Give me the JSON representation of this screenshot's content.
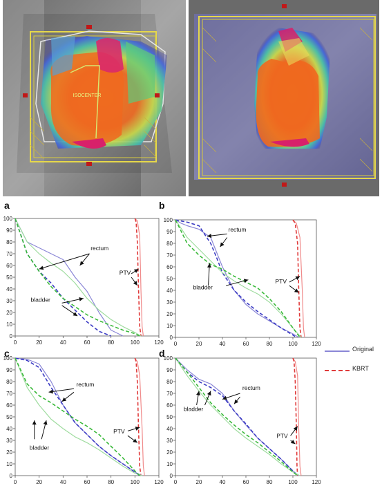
{
  "colors": {
    "original": "#8a86d6",
    "kbrt": "#e03a3a",
    "bladder_orig": "#9fdc9f",
    "bladder_kbrt": "#3cba3c",
    "rectum_kbrt": "#3b3bc4",
    "ptv_orig": "#f08a8a",
    "annotation": "#111111",
    "axis": "#555555"
  },
  "images": {
    "left_ct": {
      "description_icon": "ct-dose-overlay-original"
    },
    "right_ct": {
      "description_icon": "ct-dose-overlay-kbrt"
    }
  },
  "legend": {
    "items": [
      {
        "label": "Original",
        "style": "solid",
        "color": "#8a86d6"
      },
      {
        "label": "KBRT",
        "style": "dashed",
        "color": "#e03a3a"
      }
    ]
  },
  "chart_data": [
    {
      "panel": "a",
      "type": "line",
      "xlim": [
        0,
        120
      ],
      "ylim": [
        0,
        100
      ],
      "xticks": [
        0,
        20,
        40,
        60,
        80,
        100,
        120
      ],
      "yticks": [
        0,
        10,
        20,
        30,
        40,
        50,
        60,
        70,
        80,
        90,
        100
      ],
      "series": [
        {
          "role": "ptv_orig",
          "x": [
            100,
            102,
            104,
            105,
            106,
            107
          ],
          "y": [
            100,
            98,
            85,
            40,
            8,
            0
          ]
        },
        {
          "role": "ptv_kbrt",
          "x": [
            100,
            101,
            102,
            103,
            104,
            105
          ],
          "y": [
            100,
            97,
            80,
            40,
            8,
            0
          ]
        },
        {
          "role": "rectum_orig",
          "x": [
            0,
            5,
            10,
            20,
            30,
            40,
            50,
            60,
            70,
            80,
            90
          ],
          "y": [
            100,
            90,
            80,
            75,
            70,
            65,
            50,
            38,
            20,
            5,
            0
          ]
        },
        {
          "role": "rectum_kbrt",
          "x": [
            0,
            5,
            10,
            20,
            30,
            40,
            50,
            60,
            70,
            80
          ],
          "y": [
            100,
            85,
            70,
            55,
            45,
            32,
            22,
            12,
            4,
            0
          ]
        },
        {
          "role": "bladder_orig",
          "x": [
            0,
            10,
            20,
            30,
            40,
            50,
            60,
            70,
            80,
            90,
            100,
            105
          ],
          "y": [
            100,
            80,
            70,
            62,
            55,
            45,
            32,
            22,
            14,
            8,
            3,
            0
          ]
        },
        {
          "role": "bladder_kbrt",
          "x": [
            0,
            10,
            20,
            30,
            40,
            50,
            60,
            70,
            80,
            90,
            100,
            104
          ],
          "y": [
            100,
            70,
            55,
            42,
            32,
            25,
            18,
            13,
            9,
            5,
            2,
            0
          ]
        }
      ],
      "annotations": [
        {
          "text": "rectum",
          "tx": 63,
          "ty": 73,
          "anchor": "start",
          "arrows": [
            [
              62,
              70,
              54,
              60
            ],
            [
              62,
              70,
              20,
              57
            ]
          ]
        },
        {
          "text": "PTV",
          "tx": 87,
          "ty": 52,
          "anchor": "start",
          "arrows": [
            [
              97,
              53,
              103,
              57
            ],
            [
              97,
              50,
              102,
              43
            ]
          ]
        },
        {
          "text": "bladder",
          "tx": 13,
          "ty": 29,
          "anchor": "start",
          "arrows": [
            [
              39,
              28,
              57,
              32
            ],
            [
              39,
              26,
              52,
              17
            ]
          ]
        }
      ]
    },
    {
      "panel": "b",
      "type": "line",
      "xlim": [
        0,
        120
      ],
      "ylim": [
        0,
        100
      ],
      "xticks": [
        0,
        20,
        40,
        60,
        80,
        100,
        120
      ],
      "yticks": [
        0,
        10,
        20,
        30,
        40,
        50,
        60,
        70,
        80,
        90,
        100
      ],
      "series": [
        {
          "role": "ptv_orig",
          "x": [
            100,
            103,
            106,
            108,
            109,
            110
          ],
          "y": [
            100,
            97,
            85,
            40,
            8,
            0
          ]
        },
        {
          "role": "ptv_kbrt",
          "x": [
            100,
            102,
            104,
            105,
            106,
            107
          ],
          "y": [
            100,
            97,
            80,
            40,
            8,
            0
          ]
        },
        {
          "role": "rectum_orig",
          "x": [
            0,
            5,
            10,
            20,
            30,
            40,
            50,
            60,
            70,
            80,
            90,
            100,
            105
          ],
          "y": [
            100,
            97,
            95,
            92,
            85,
            60,
            40,
            28,
            20,
            14,
            8,
            3,
            0
          ]
        },
        {
          "role": "rectum_kbrt",
          "x": [
            0,
            10,
            20,
            30,
            35,
            40,
            50,
            60,
            70,
            80,
            90,
            100,
            103
          ],
          "y": [
            100,
            98,
            95,
            80,
            68,
            55,
            40,
            30,
            22,
            15,
            8,
            2,
            0
          ]
        },
        {
          "role": "bladder_orig",
          "x": [
            0,
            10,
            20,
            30,
            40,
            50,
            60,
            70,
            80,
            90,
            100,
            107
          ],
          "y": [
            100,
            85,
            75,
            65,
            55,
            48,
            42,
            37,
            30,
            20,
            8,
            0
          ]
        },
        {
          "role": "bladder_kbrt",
          "x": [
            0,
            10,
            20,
            30,
            40,
            50,
            60,
            70,
            80,
            90,
            100,
            106
          ],
          "y": [
            100,
            80,
            70,
            62,
            58,
            52,
            47,
            42,
            33,
            22,
            8,
            0
          ]
        }
      ],
      "annotations": [
        {
          "text": "rectum",
          "tx": 45,
          "ty": 90,
          "anchor": "start",
          "arrows": [
            [
              44,
              88,
              27,
              86
            ],
            [
              44,
              85,
              38,
              77
            ]
          ]
        },
        {
          "text": "PTV",
          "tx": 85,
          "ty": 46,
          "anchor": "start",
          "arrows": [
            [
              97,
              47,
              106,
              52
            ],
            [
              97,
              44,
              105,
              38
            ]
          ]
        },
        {
          "text": "bladder",
          "tx": 15,
          "ty": 41,
          "anchor": "start",
          "arrows": [
            [
              28,
              44,
              29,
              63
            ],
            [
              43,
              44,
              62,
              49
            ]
          ]
        }
      ]
    },
    {
      "panel": "c",
      "type": "line",
      "xlim": [
        0,
        120
      ],
      "ylim": [
        0,
        100
      ],
      "xticks": [
        0,
        20,
        40,
        60,
        80,
        100,
        120
      ],
      "yticks": [
        0,
        10,
        20,
        30,
        40,
        50,
        60,
        70,
        80,
        90,
        100
      ],
      "series": [
        {
          "role": "ptv_orig",
          "x": [
            100,
            102,
            104,
            106,
            107,
            108
          ],
          "y": [
            100,
            97,
            85,
            40,
            8,
            0
          ]
        },
        {
          "role": "ptv_kbrt",
          "x": [
            100,
            101,
            102,
            103,
            104,
            105
          ],
          "y": [
            100,
            97,
            80,
            40,
            8,
            0
          ]
        },
        {
          "role": "rectum_orig",
          "x": [
            0,
            10,
            20,
            30,
            40,
            50,
            60,
            70,
            80,
            90,
            100,
            106
          ],
          "y": [
            100,
            99,
            95,
            80,
            60,
            45,
            35,
            25,
            17,
            10,
            3,
            0
          ]
        },
        {
          "role": "rectum_kbrt",
          "x": [
            0,
            10,
            20,
            30,
            40,
            50,
            60,
            70,
            80,
            90,
            100,
            104
          ],
          "y": [
            100,
            98,
            92,
            75,
            60,
            45,
            35,
            25,
            17,
            10,
            3,
            0
          ]
        },
        {
          "role": "bladder_orig",
          "x": [
            0,
            10,
            20,
            30,
            40,
            50,
            60,
            70,
            80,
            90,
            100,
            106
          ],
          "y": [
            100,
            75,
            60,
            48,
            40,
            33,
            28,
            22,
            15,
            8,
            2,
            0
          ]
        },
        {
          "role": "bladder_kbrt",
          "x": [
            0,
            10,
            20,
            30,
            40,
            50,
            60,
            70,
            80,
            90,
            100,
            104
          ],
          "y": [
            100,
            78,
            68,
            62,
            55,
            48,
            42,
            35,
            25,
            15,
            4,
            0
          ]
        }
      ],
      "annotations": [
        {
          "text": "rectum",
          "tx": 51,
          "ty": 76,
          "anchor": "start",
          "arrows": [
            [
              49,
              74,
              28,
              71
            ],
            [
              49,
              71,
              39,
              63
            ]
          ]
        },
        {
          "text": "PTV",
          "tx": 82,
          "ty": 36,
          "anchor": "start",
          "arrows": [
            [
              94,
              38,
              104,
              41
            ],
            [
              94,
              34,
              102,
              28
            ]
          ]
        },
        {
          "text": "bladder",
          "tx": 12,
          "ty": 22,
          "anchor": "start",
          "arrows": [
            [
              16,
              31,
              16,
              47
            ],
            [
              22,
              31,
              26,
              47
            ]
          ]
        }
      ]
    },
    {
      "panel": "d",
      "type": "line",
      "xlim": [
        0,
        120
      ],
      "ylim": [
        0,
        100
      ],
      "xticks": [
        0,
        20,
        40,
        60,
        80,
        100,
        120
      ],
      "yticks": [
        0,
        10,
        20,
        30,
        40,
        50,
        60,
        70,
        80,
        90,
        100
      ],
      "series": [
        {
          "role": "ptv_orig",
          "x": [
            100,
            102,
            104,
            105,
            106,
            107
          ],
          "y": [
            100,
            97,
            85,
            40,
            8,
            0
          ]
        },
        {
          "role": "ptv_kbrt",
          "x": [
            100,
            101,
            102,
            103,
            103.5,
            104
          ],
          "y": [
            100,
            97,
            80,
            40,
            8,
            0
          ]
        },
        {
          "role": "rectum_orig",
          "x": [
            0,
            10,
            20,
            30,
            40,
            50,
            60,
            70,
            80,
            90,
            100,
            105
          ],
          "y": [
            100,
            90,
            82,
            78,
            70,
            55,
            43,
            32,
            23,
            14,
            4,
            0
          ]
        },
        {
          "role": "rectum_kbrt",
          "x": [
            0,
            10,
            20,
            30,
            40,
            50,
            60,
            70,
            80,
            90,
            100,
            104
          ],
          "y": [
            100,
            88,
            80,
            75,
            68,
            55,
            44,
            32,
            23,
            14,
            4,
            0
          ]
        },
        {
          "role": "bladder_orig",
          "x": [
            0,
            10,
            20,
            30,
            40,
            50,
            60,
            70,
            80,
            90,
            100,
            106
          ],
          "y": [
            100,
            85,
            72,
            60,
            50,
            40,
            32,
            25,
            18,
            10,
            3,
            0
          ]
        },
        {
          "role": "bladder_kbrt",
          "x": [
            0,
            10,
            20,
            30,
            40,
            50,
            60,
            70,
            80,
            90,
            100,
            104
          ],
          "y": [
            100,
            88,
            75,
            62,
            52,
            43,
            35,
            28,
            20,
            12,
            3,
            0
          ]
        }
      ],
      "annotations": [
        {
          "text": "rectum",
          "tx": 57,
          "ty": 73,
          "anchor": "start",
          "arrows": [
            [
              55,
              70,
              40,
              65
            ],
            [
              55,
              67,
              50,
              61
            ]
          ]
        },
        {
          "text": "PTV",
          "tx": 86,
          "ty": 32,
          "anchor": "start",
          "arrows": [
            [
              98,
              34,
              104,
              42
            ],
            [
              98,
              30,
              102,
              27
            ]
          ]
        },
        {
          "text": "bladder",
          "tx": 7,
          "ty": 55,
          "anchor": "start",
          "arrows": [
            [
              18,
              60,
              20,
              72
            ],
            [
              25,
              60,
              30,
              72
            ]
          ]
        }
      ]
    }
  ]
}
